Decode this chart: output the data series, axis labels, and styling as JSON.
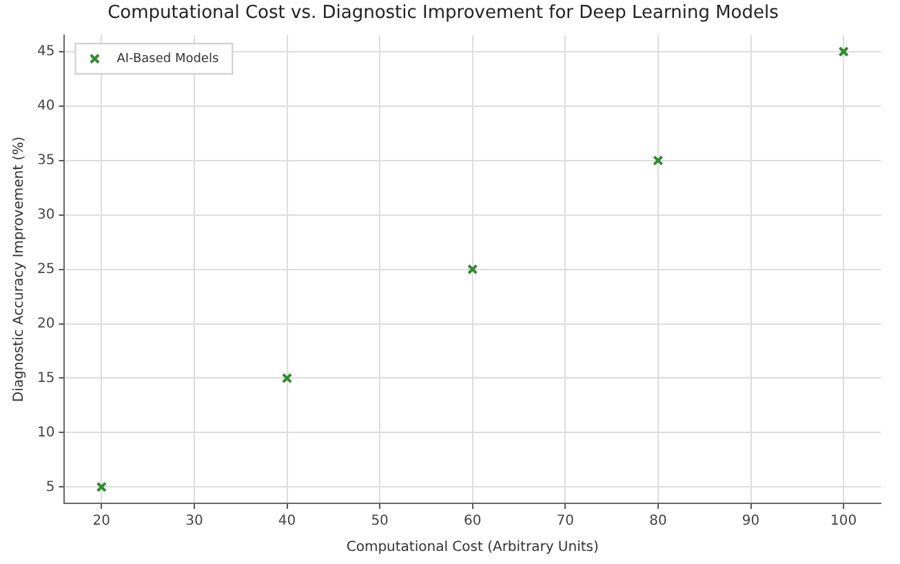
{
  "chart_data": {
    "type": "scatter",
    "title": "Computational Cost vs. Diagnostic Improvement for Deep Learning Models",
    "xlabel": "Computational Cost (Arbitrary Units)",
    "ylabel": "Diagnostic Accuracy Improvement (%)",
    "x": [
      20,
      40,
      60,
      80,
      100
    ],
    "series": [
      {
        "name": "AI-Based Models",
        "color": "#2e8b2e",
        "values": [
          5,
          15,
          25,
          35,
          45
        ]
      }
    ],
    "xlim": [
      16,
      104
    ],
    "ylim": [
      3.5,
      46.5
    ],
    "xticks": [
      20,
      30,
      40,
      50,
      60,
      70,
      80,
      90,
      100
    ],
    "yticks": [
      5,
      10,
      15,
      20,
      25,
      30,
      35,
      40,
      45
    ],
    "grid": true,
    "legend": "top left",
    "marker": "cross"
  }
}
